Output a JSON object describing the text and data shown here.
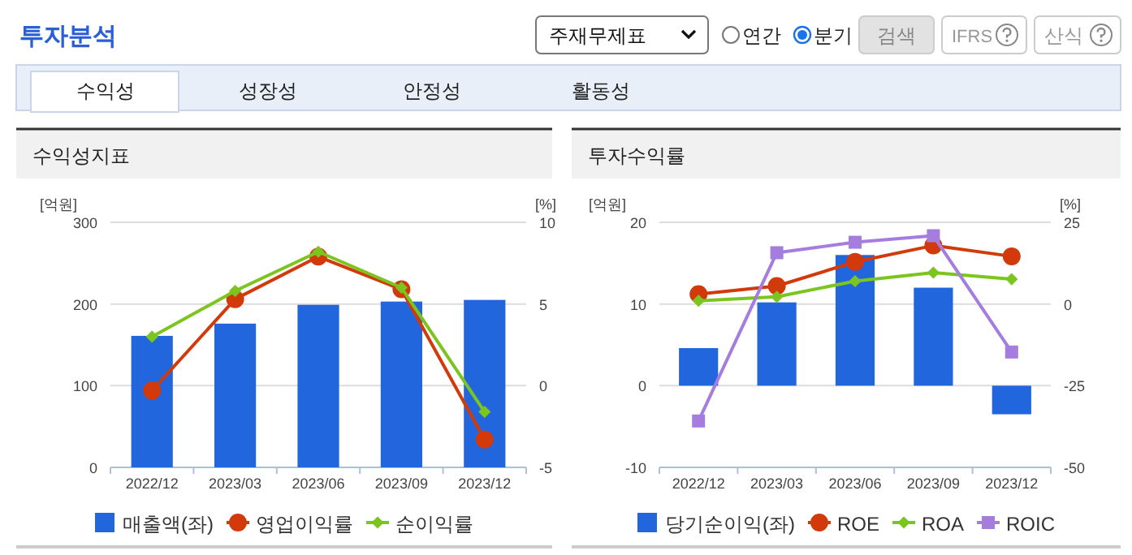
{
  "chart_data": [
    {
      "type": "other",
      "annotations": [
        "투자분석",
        "주재무제표",
        "연간",
        "분기",
        "검색",
        "IFRS",
        "산식",
        "수익성",
        "성장성",
        "안정성",
        "활동성"
      ]
    },
    {
      "type": "bar",
      "title": "수익성지표",
      "categories": [
        "2022/12",
        "2023/03",
        "2023/06",
        "2023/09",
        "2023/12"
      ],
      "ylabel": "[억원]",
      "y2label": "[%]",
      "ylim": [
        0,
        300
      ],
      "yticks": [
        0,
        100,
        200,
        300
      ],
      "y2lim": [
        -5,
        10
      ],
      "y2ticks": [
        -5,
        0,
        5,
        10
      ],
      "grid": "y",
      "legend": "bottom",
      "series": [
        {
          "name": "매출액(좌)",
          "type": "bar",
          "color": "#2166dc",
          "values": [
            161,
            176,
            199,
            203,
            205
          ]
        },
        {
          "name": "영업이익률",
          "type": "line",
          "axis": "y2",
          "marker": "circle",
          "color": "#d23a0c",
          "values": [
            -0.3,
            5.3,
            7.9,
            5.9,
            -3.3
          ]
        },
        {
          "name": "순이익률",
          "type": "line",
          "axis": "y2",
          "marker": "diamond",
          "color": "#7cc41e",
          "values": [
            3.0,
            5.8,
            8.2,
            6.0,
            -1.6
          ]
        }
      ]
    },
    {
      "type": "bar",
      "title": "투자수익률",
      "categories": [
        "2022/12",
        "2023/03",
        "2023/06",
        "2023/09",
        "2023/12"
      ],
      "ylabel": "[억원]",
      "y2label": "[%]",
      "ylim": [
        -10,
        20
      ],
      "yticks": [
        -10,
        0,
        10,
        20
      ],
      "y2lim": [
        -50,
        25
      ],
      "y2ticks": [
        -50,
        -25,
        0,
        25
      ],
      "grid": "y",
      "legend": "bottom",
      "series": [
        {
          "name": "당기순이익(좌)",
          "type": "bar",
          "color": "#2166dc",
          "values": [
            4.6,
            10.2,
            16.0,
            12.0,
            -3.5
          ]
        },
        {
          "name": "ROE",
          "type": "line",
          "axis": "y2",
          "marker": "circle",
          "color": "#d23a0c",
          "values": [
            3.0,
            5.5,
            12.9,
            17.9,
            14.6
          ]
        },
        {
          "name": "ROA",
          "type": "line",
          "axis": "y2",
          "marker": "diamond",
          "color": "#7cc41e",
          "values": [
            1.0,
            2.2,
            7.0,
            9.6,
            7.6
          ]
        },
        {
          "name": "ROIC",
          "type": "line",
          "axis": "y2",
          "marker": "square",
          "color": "#a57ddf",
          "values": [
            -35.8,
            15.7,
            18.9,
            20.9,
            -14.7
          ]
        }
      ]
    }
  ]
}
